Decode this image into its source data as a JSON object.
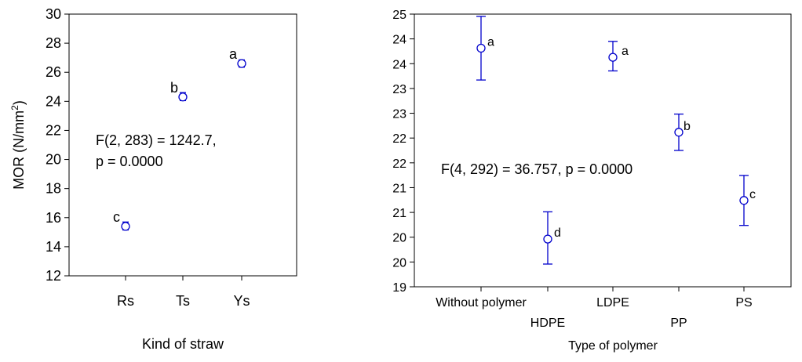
{
  "chart_data": [
    {
      "type": "scatter",
      "error_bars": true,
      "xlabel": "Kind of straw",
      "ylabel": "MOR (N/mm",
      "ylabel_superscript": "2",
      "ylabel_suffix": ")",
      "ylim": [
        12,
        30
      ],
      "yticks": [
        "12",
        "14",
        "16",
        "18",
        "20",
        "22",
        "24",
        "26",
        "28",
        "30"
      ],
      "categories": [
        "Rs",
        "Ts",
        "Ys"
      ],
      "points": [
        {
          "category": "Rs",
          "y": 15.4,
          "lower": 15.15,
          "upper": 15.7,
          "label": "c"
        },
        {
          "category": "Ts",
          "y": 24.3,
          "lower": 24.05,
          "upper": 24.6,
          "label": "b"
        },
        {
          "category": "Ys",
          "y": 26.6,
          "lower": 26.35,
          "upper": 26.85,
          "label": "a"
        }
      ],
      "annotation": [
        "F(2, 283) = 1242.7,",
        "p = 0.0000"
      ],
      "marker_color": "#0000cc"
    },
    {
      "type": "scatter",
      "error_bars": true,
      "xlabel": "Type of polymer",
      "ylim": [
        19,
        25
      ],
      "yticks": [
        "19",
        "20",
        "20",
        "21",
        "21",
        "22",
        "22",
        "23",
        "23",
        "24",
        "24",
        "25"
      ],
      "categories": [
        "Without polymer",
        "HDPE",
        "LDPE",
        "PP",
        "PS"
      ],
      "points": [
        {
          "category": "Without polymer",
          "y": 24.25,
          "lower": 23.55,
          "upper": 24.95,
          "label": "a"
        },
        {
          "category": "HDPE",
          "y": 20.05,
          "lower": 19.5,
          "upper": 20.65,
          "label": "d"
        },
        {
          "category": "LDPE",
          "y": 24.05,
          "lower": 23.75,
          "upper": 24.4,
          "label": "a"
        },
        {
          "category": "PP",
          "y": 22.4,
          "lower": 22.0,
          "upper": 22.8,
          "label": "b"
        },
        {
          "category": "PS",
          "y": 20.9,
          "lower": 20.35,
          "upper": 21.45,
          "label": "c"
        }
      ],
      "annotation": [
        "F(4, 292) = 36.757, p = 0.0000"
      ],
      "marker_color": "#0000cc"
    }
  ]
}
